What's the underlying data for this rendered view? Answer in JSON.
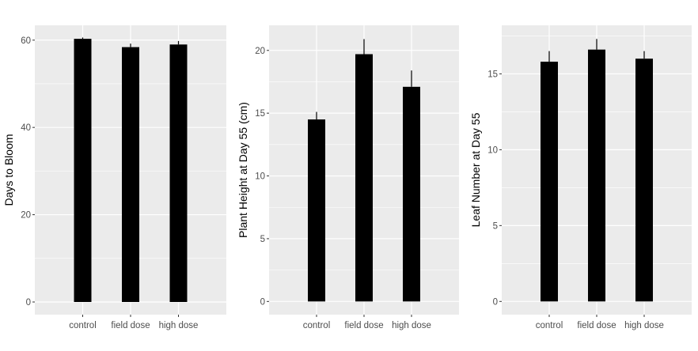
{
  "chart_data": [
    {
      "type": "bar",
      "categories": [
        "control",
        "field dose",
        "high dose"
      ],
      "values": [
        60.3,
        58.4,
        59.0
      ],
      "error_upper": [
        60.6,
        59.2,
        59.8
      ],
      "ylabel": "Days to Bloom",
      "xlabel": "",
      "ylim": [
        -2.9,
        63.4
      ],
      "yticks": [
        0,
        20,
        40,
        60
      ],
      "ytick_labels": [
        "0",
        "20",
        "40",
        "60"
      ],
      "grid": true,
      "legend": "none"
    },
    {
      "type": "bar",
      "categories": [
        "control",
        "field dose",
        "high dose"
      ],
      "values": [
        14.5,
        19.7,
        17.1
      ],
      "error_upper": [
        15.1,
        20.9,
        18.4
      ],
      "ylabel": "Plant Height at Day 55 (cm)",
      "xlabel": "",
      "ylim": [
        -1.05,
        22.0
      ],
      "yticks": [
        0,
        5,
        10,
        15,
        20
      ],
      "ytick_labels": [
        "0",
        "5",
        "10",
        "15",
        "20"
      ],
      "grid": true,
      "legend": "none"
    },
    {
      "type": "bar",
      "categories": [
        "control",
        "field dose",
        "high dose"
      ],
      "values": [
        15.8,
        16.6,
        16.0
      ],
      "error_upper": [
        16.5,
        17.3,
        16.5
      ],
      "ylabel": "Leaf Number at Day 55",
      "xlabel": "",
      "ylim": [
        -0.87,
        18.2
      ],
      "yticks": [
        0,
        5,
        10,
        15
      ],
      "ytick_labels": [
        "0",
        "5",
        "10",
        "15"
      ],
      "grid": true,
      "legend": "none"
    }
  ],
  "colors": {
    "panel_background": "#ebebeb",
    "grid_major": "#ffffff",
    "bar_fill": "#000000",
    "error_bar": "#000000",
    "tick_text": "#4d4d4d",
    "axis_title": "#000000"
  }
}
